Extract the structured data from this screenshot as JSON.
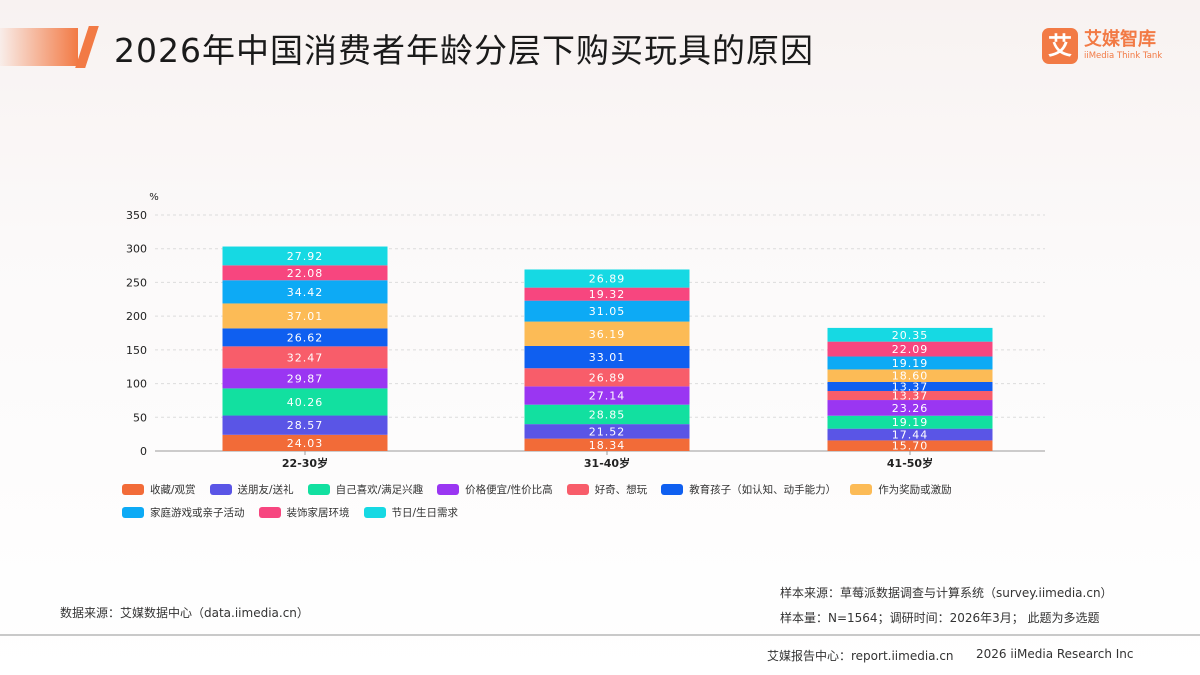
{
  "header": {
    "title": "2026年中国消费者年龄分层下购买玩具的原因",
    "logo_mark": "艾",
    "logo_name": "艾媒智库",
    "logo_sub": "iiMedia Think Tank"
  },
  "chart_data": {
    "type": "bar",
    "stacked": true,
    "ylabel": "%",
    "ylim": [
      0,
      350
    ],
    "yticks": [
      0,
      50,
      100,
      150,
      200,
      250,
      300,
      350
    ],
    "grid": true,
    "legend_position": "bottom",
    "categories": [
      "22-30岁",
      "31-40岁",
      "41-50岁"
    ],
    "series": [
      {
        "name": "收藏/观赏",
        "color": "#f26b38",
        "values": [
          24.03,
          18.34,
          15.7
        ]
      },
      {
        "name": "送朋友/送礼",
        "color": "#5a55e6",
        "values": [
          28.57,
          21.52,
          17.44
        ]
      },
      {
        "name": "自己喜欢/满足兴趣",
        "color": "#12e0a0",
        "values": [
          40.26,
          28.85,
          19.19
        ]
      },
      {
        "name": "价格便宜/性价比高",
        "color": "#9a36f2",
        "values": [
          29.87,
          27.14,
          23.26
        ]
      },
      {
        "name": "好奇、想玩",
        "color": "#f85d6a",
        "values": [
          32.47,
          26.89,
          13.37
        ]
      },
      {
        "name": "教育孩子（如认知、动手能力）",
        "color": "#0f5ff0",
        "values": [
          26.62,
          33.01,
          13.37
        ]
      },
      {
        "name": "作为奖励或激励",
        "color": "#fcbb56",
        "values": [
          37.01,
          36.19,
          18.6
        ]
      },
      {
        "name": "家庭游戏或亲子活动",
        "color": "#0daaf5",
        "values": [
          34.42,
          31.05,
          19.19
        ]
      },
      {
        "name": "装饰家居环境",
        "color": "#f7467f",
        "values": [
          22.08,
          19.32,
          22.09
        ]
      },
      {
        "name": "节日/生日需求",
        "color": "#16d9e3",
        "values": [
          27.92,
          26.89,
          20.35
        ]
      }
    ]
  },
  "footer": {
    "data_source": "数据来源：艾媒数据中心（data.iimedia.cn）",
    "sample_source": "样本来源：草莓派数据调查与计算系统（survey.iimedia.cn）",
    "sample_size": "样本量：N=1564；调研时间：2026年3月；  此题为多选题",
    "report_center": "艾媒报告中心：report.iimedia.cn",
    "copyright": "2026 iiMedia Research Inc"
  }
}
